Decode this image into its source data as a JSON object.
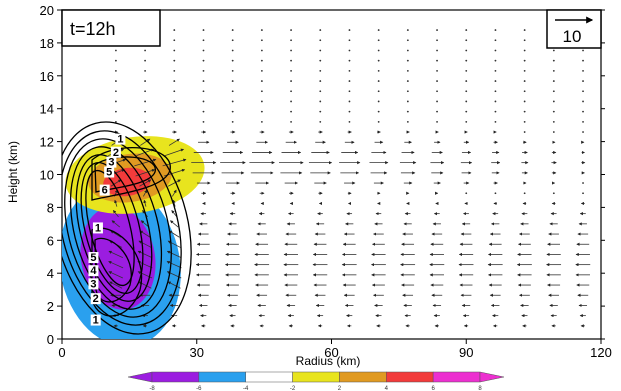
{
  "chart_data": {
    "type": "vector-field-contour",
    "time_label": "t=12h",
    "reference_vector_label": "10",
    "xlabel": "Radius (km)",
    "ylabel": "Height (km)",
    "xlim": [
      0,
      120
    ],
    "ylim": [
      0,
      20
    ],
    "x_ticks": [
      0,
      30,
      60,
      90,
      120
    ],
    "y_ticks": [
      0,
      2,
      4,
      6,
      8,
      10,
      12,
      14,
      16,
      18,
      20
    ],
    "grid": false,
    "colorbar": {
      "tick_labels": [
        "-8",
        "-6",
        "-4",
        "-2",
        "2",
        "4",
        "6",
        "8"
      ],
      "colors": [
        "#9b1de0",
        "#2aa0ee",
        "#ffffff",
        "#e8e41e",
        "#e09a22",
        "#f23b3b",
        "#ec2fd0"
      ],
      "low_color": "#9b1de0",
      "high_color": "#ec2fd0"
    },
    "contour_labels": [
      {
        "text": "1",
        "x": 13,
        "y": 12.0
      },
      {
        "text": "2",
        "x": 12,
        "y": 11.2
      },
      {
        "text": "3",
        "x": 11,
        "y": 10.6
      },
      {
        "text": "5",
        "x": 10.5,
        "y": 10.0
      },
      {
        "text": "6",
        "x": 9.5,
        "y": 8.9
      },
      {
        "text": "1",
        "x": 8,
        "y": 6.6
      },
      {
        "text": "5",
        "x": 7,
        "y": 4.8
      },
      {
        "text": "4",
        "x": 7,
        "y": 4.0
      },
      {
        "text": "3",
        "x": 7,
        "y": 3.2
      },
      {
        "text": "2",
        "x": 7.5,
        "y": 2.3
      },
      {
        "text": "1",
        "x": 7.5,
        "y": 1.0
      }
    ]
  }
}
